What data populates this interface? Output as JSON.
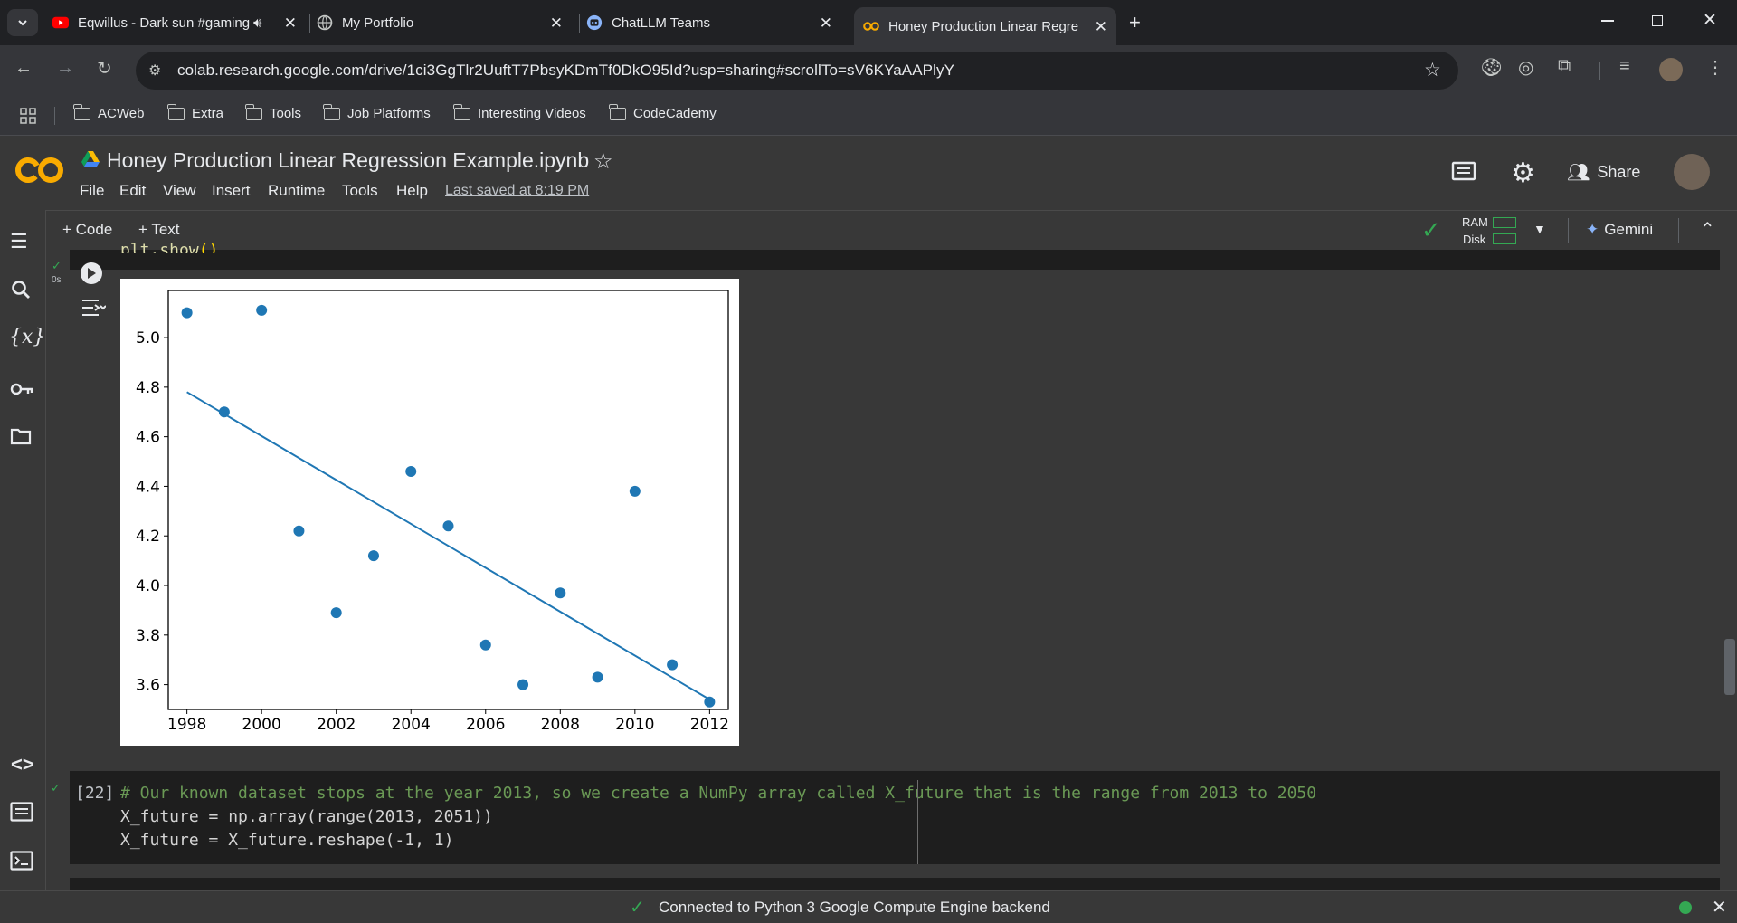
{
  "browser": {
    "tabs": [
      {
        "title": "Eqwillus - Dark sun #gaming",
        "favicon": "youtube-icon",
        "audio": true
      },
      {
        "title": "My Portfolio",
        "favicon": "globe-icon"
      },
      {
        "title": "ChatLLM Teams",
        "favicon": "robot-icon"
      },
      {
        "title": "Honey Production Linear Regre",
        "favicon": "colab-icon",
        "active": true
      }
    ],
    "url": "colab.research.google.com/drive/1ci3GgTlr2UuftT7PbsyKDmTf0DkO95Id?usp=sharing#scrollTo=sV6KYaAAPlyY",
    "bookmarks": [
      "ACWeb",
      "Extra",
      "Tools",
      "Job Platforms",
      "Interesting Videos",
      "CodeCademy"
    ]
  },
  "colab": {
    "logo": "CO",
    "notebook_title": "Honey Production Linear Regression Example.ipynb",
    "menu": [
      "File",
      "Edit",
      "View",
      "Insert",
      "Runtime",
      "Tools",
      "Help"
    ],
    "last_saved": "Last saved at 8:19 PM",
    "share_label": "Share",
    "add_code": "+ Code",
    "add_text": "+ Text",
    "ram_label": "RAM",
    "disk_label": "Disk",
    "gemini_label": "Gemini",
    "exec_time": "0s",
    "cell_number": "[22]",
    "code_lines": [
      "# Our known dataset stops at the year 2013, so we create a NumPy array called X_future that is the range from 2013 to 2050",
      "X_future = np.array(range(2013, 2051))",
      "X_future = X_future.reshape(-1, 1)"
    ],
    "status": "Connected to Python 3 Google Compute Engine backend"
  },
  "colors": {
    "accent_orange": "#f9ab00",
    "scatter_blue": "#1f77b4",
    "check_green": "#34a853"
  },
  "chart_data": {
    "type": "scatter",
    "x": [
      1998,
      1999,
      2000,
      2001,
      2002,
      2003,
      2004,
      2005,
      2006,
      2007,
      2008,
      2009,
      2010,
      2011,
      2012
    ],
    "y": [
      5.1,
      4.7,
      5.11,
      4.22,
      3.89,
      4.12,
      4.46,
      4.24,
      3.76,
      3.6,
      3.97,
      3.63,
      4.38,
      3.68,
      3.53
    ],
    "fit_line": {
      "x": [
        1998,
        2012
      ],
      "y": [
        4.78,
        3.54
      ]
    },
    "xticks": [
      "1998",
      "2000",
      "2002",
      "2004",
      "2006",
      "2008",
      "2010",
      "2012"
    ],
    "yticks": [
      "3.6",
      "3.8",
      "4.0",
      "4.2",
      "4.4",
      "4.6",
      "4.8",
      "5.0"
    ],
    "xlim": [
      1997.5,
      2012.5
    ],
    "ylim": [
      3.5,
      5.19
    ],
    "grid": false
  }
}
